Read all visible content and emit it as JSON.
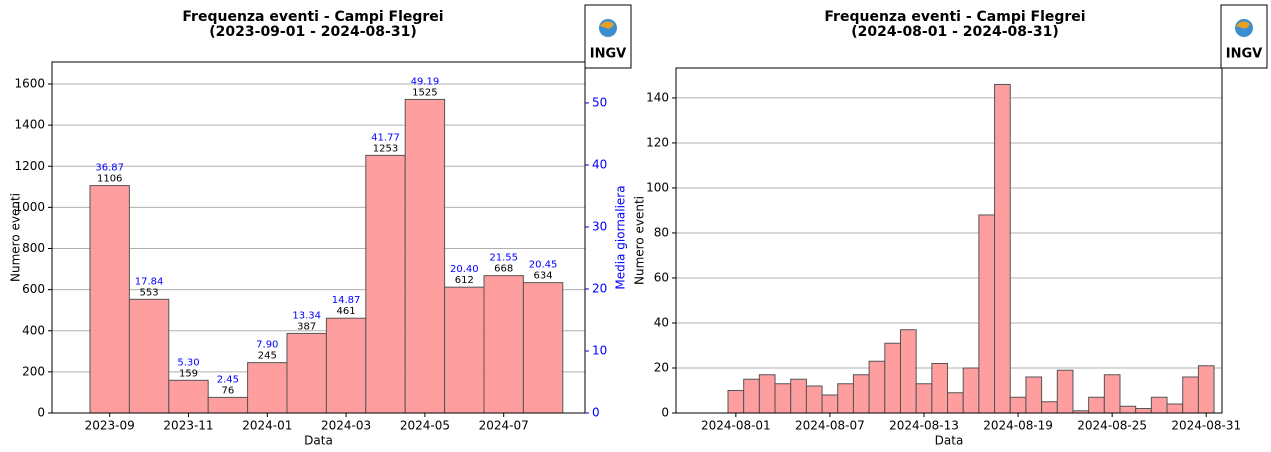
{
  "logo": "INGV",
  "chart_data": [
    {
      "type": "bar",
      "title": "Frequenza eventi - Campi Flegrei\n(2023-09-01 - 2024-08-31)",
      "xlabel": "Data",
      "ylabel": "Numero eventi",
      "y2label": "Media giornaliera",
      "categories": [
        "2023-09",
        null,
        "2023-11",
        null,
        "2024-01",
        null,
        "2024-03",
        null,
        "2024-05",
        null,
        "2024-07",
        null
      ],
      "series": [
        {
          "color": "#ff9999",
          "values": [
            1106,
            553,
            159,
            76,
            245,
            387,
            461,
            1253,
            1525,
            612,
            668,
            634
          ]
        },
        {
          "axis": "y2",
          "color": "#0000ff",
          "values": [
            36.87,
            17.84,
            5.3,
            2.45,
            7.9,
            13.34,
            14.87,
            41.77,
            49.19,
            20.4,
            21.55,
            20.45
          ],
          "value_labels": [
            "36.87",
            "17.84",
            "5.30",
            "2.45",
            "7.90",
            "13.34",
            "14.87",
            "41.77",
            "49.19",
            "20.40",
            "21.55",
            "20.45"
          ]
        }
      ],
      "ylim": [
        0,
        1707
      ],
      "yticks": [
        0,
        200,
        400,
        600,
        800,
        1000,
        1200,
        1400,
        1600
      ],
      "y2lim": [
        0,
        56.6
      ],
      "y2ticks": [
        0,
        10,
        20,
        30,
        40,
        50
      ],
      "grid": true
    },
    {
      "type": "bar",
      "title": "Frequenza eventi - Campi Flegrei\n(2024-08-01 - 2024-08-31)",
      "xlabel": "Data",
      "ylabel": "Numero eventi",
      "categories": [
        "2024-08-01",
        null,
        null,
        null,
        null,
        null,
        "2024-08-07",
        null,
        null,
        null,
        null,
        null,
        "2024-08-13",
        null,
        null,
        null,
        null,
        null,
        "2024-08-19",
        null,
        null,
        null,
        null,
        null,
        "2024-08-25",
        null,
        null,
        null,
        null,
        null,
        "2024-08-31"
      ],
      "series": [
        {
          "color": "#ff9999",
          "values": [
            10,
            15,
            17,
            13,
            15,
            12,
            8,
            13,
            17,
            23,
            31,
            37,
            13,
            22,
            9,
            20,
            88,
            146,
            7,
            16,
            5,
            19,
            1,
            7,
            17,
            3,
            2,
            7,
            4,
            16,
            21
          ]
        }
      ],
      "ylim": [
        0,
        153.3
      ],
      "yticks": [
        0,
        20,
        40,
        60,
        80,
        100,
        120,
        140
      ],
      "grid": true
    }
  ]
}
